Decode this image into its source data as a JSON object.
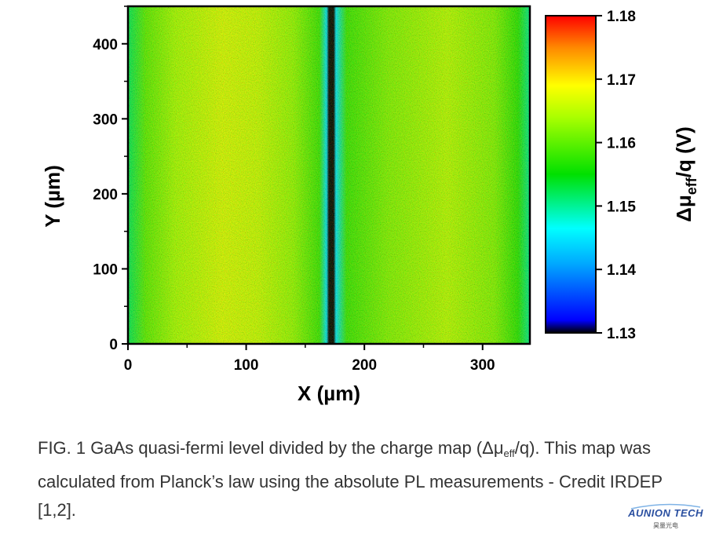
{
  "chart_data": {
    "type": "heatmap",
    "title": "",
    "xlabel": "X (µm)",
    "ylabel": "Y (µm)",
    "xlim": [
      0,
      340
    ],
    "ylim": [
      0,
      450
    ],
    "x_ticks": [
      0,
      100,
      200,
      300
    ],
    "y_ticks": [
      0,
      100,
      200,
      300,
      400
    ],
    "colorbar": {
      "label_main": "Δμ",
      "label_sub": "eff",
      "label_tail": "/q (V)",
      "min": 1.13,
      "max": 1.18,
      "ticks": [
        "1.18",
        "1.17",
        "1.16",
        "1.15",
        "1.14",
        "1.13"
      ],
      "colormap": [
        "#000000",
        "#0000ff",
        "#00ffff",
        "#00ff00",
        "#ffff00",
        "#ff0000"
      ]
    },
    "profile_along_x": [
      {
        "x": 0,
        "value": 1.152
      },
      {
        "x": 15,
        "value": 1.16
      },
      {
        "x": 40,
        "value": 1.164
      },
      {
        "x": 80,
        "value": 1.167
      },
      {
        "x": 110,
        "value": 1.166
      },
      {
        "x": 140,
        "value": 1.163
      },
      {
        "x": 162,
        "value": 1.158
      },
      {
        "x": 168,
        "value": 1.145
      },
      {
        "x": 170,
        "value": 1.13
      },
      {
        "x": 174,
        "value": 1.13
      },
      {
        "x": 176,
        "value": 1.145
      },
      {
        "x": 185,
        "value": 1.158
      },
      {
        "x": 220,
        "value": 1.162
      },
      {
        "x": 270,
        "value": 1.165
      },
      {
        "x": 310,
        "value": 1.162
      },
      {
        "x": 330,
        "value": 1.157
      },
      {
        "x": 340,
        "value": 1.15
      }
    ]
  },
  "caption": {
    "part1": "FIG. 1 GaAs quasi-fermi level divided by the charge map (Δμ",
    "sub": "eff",
    "part2": "/q). This map was calculated from Planck’s law using the absolute PL measurements - Credit IRDEP [1,2]."
  },
  "logo": {
    "text": "AUNION TECH",
    "sub": "昊量光电"
  }
}
